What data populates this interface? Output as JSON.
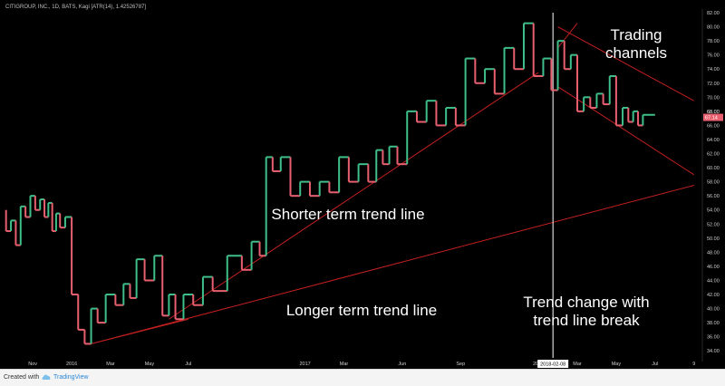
{
  "header": {
    "title": "CITIGROUP, INC., 1D, BATS, Kagi [ATR(14), 1.42526787]"
  },
  "footer": {
    "created_with": "Created with",
    "brand": "TradingView",
    "logo_icon": "cloud-icon"
  },
  "colors": {
    "up": "#3fbf8a",
    "down": "#e8606f",
    "trend_line": "#c42020",
    "background": "#000000",
    "cursor": "#ffffff"
  },
  "chart_data": {
    "type": "line",
    "subtype": "kagi",
    "ylim": [
      33,
      82
    ],
    "yticks": [
      34,
      36,
      38,
      40,
      42,
      44,
      46,
      48,
      50,
      52,
      54,
      56,
      58,
      60,
      62,
      64,
      66,
      68,
      70,
      72,
      74,
      76,
      78,
      80,
      82
    ],
    "price_tag": "67.14",
    "last_price_label": "68.00",
    "x_labels": [
      "Nov",
      "2016",
      "Mar",
      "May",
      "Jul",
      "2017",
      "Mar",
      "Jun",
      "Sep",
      "2018",
      "Mar",
      "May",
      "Jul",
      "9"
    ],
    "cursor_date": "2018-02-08",
    "kagi_lines": [
      {
        "date": "Oct 2015",
        "value": 54
      },
      {
        "date": "Oct 2015",
        "value": 51
      },
      {
        "date": "Oct 2015",
        "value": 52.5
      },
      {
        "date": "Oct 2015",
        "value": 49
      },
      {
        "date": "Nov 2015",
        "value": 54.5
      },
      {
        "date": "Nov 2015",
        "value": 53
      },
      {
        "date": "Nov 2015",
        "value": 56
      },
      {
        "date": "Nov 2015",
        "value": 54
      },
      {
        "date": "Dec 2015",
        "value": 55.5
      },
      {
        "date": "Dec 2015",
        "value": 53
      },
      {
        "date": "Dec 2015",
        "value": 55
      },
      {
        "date": "Dec 2015",
        "value": 51
      },
      {
        "date": "Dec 2015",
        "value": 53.5
      },
      {
        "date": "Jan 2016",
        "value": 51.5
      },
      {
        "date": "Jan 2016",
        "value": 53
      },
      {
        "date": "Jan 2016",
        "value": 42
      },
      {
        "date": "Feb 2016",
        "value": 37
      },
      {
        "date": "Feb 2016",
        "value": 35
      },
      {
        "date": "Feb 2016",
        "value": 40
      },
      {
        "date": "Mar 2016",
        "value": 38
      },
      {
        "date": "Mar 2016",
        "value": 42
      },
      {
        "date": "Apr 2016",
        "value": 40.5
      },
      {
        "date": "Apr 2016",
        "value": 43.5
      },
      {
        "date": "Apr 2016",
        "value": 41.5
      },
      {
        "date": "May 2016",
        "value": 47
      },
      {
        "date": "May 2016",
        "value": 44
      },
      {
        "date": "Jun 2016",
        "value": 47.5
      },
      {
        "date": "Jun 2016",
        "value": 39
      },
      {
        "date": "Jun 2016",
        "value": 42
      },
      {
        "date": "Jul 2016",
        "value": 38.5
      },
      {
        "date": "Jul 2016",
        "value": 42
      },
      {
        "date": "Aug 2016",
        "value": 40.5
      },
      {
        "date": "Aug 2016",
        "value": 44.5
      },
      {
        "date": "Sep 2016",
        "value": 42.5
      },
      {
        "date": "Oct 2016",
        "value": 47.5
      },
      {
        "date": "Oct 2016",
        "value": 45.5
      },
      {
        "date": "Nov 2016",
        "value": 49.5
      },
      {
        "date": "Nov 2016",
        "value": 47.5
      },
      {
        "date": "Nov 2016",
        "value": 61.5
      },
      {
        "date": "Dec 2016",
        "value": 59.5
      },
      {
        "date": "Dec 2016",
        "value": 61.5
      },
      {
        "date": "Jan 2017",
        "value": 56
      },
      {
        "date": "Jan 2017",
        "value": 58
      },
      {
        "date": "Feb 2017",
        "value": 56
      },
      {
        "date": "Feb 2017",
        "value": 58
      },
      {
        "date": "Mar 2017",
        "value": 56.5
      },
      {
        "date": "Mar 2017",
        "value": 61.5
      },
      {
        "date": "Apr 2017",
        "value": 58
      },
      {
        "date": "Apr 2017",
        "value": 60.5
      },
      {
        "date": "May 2017",
        "value": 58
      },
      {
        "date": "May 2017",
        "value": 62.5
      },
      {
        "date": "May 2017",
        "value": 60.5
      },
      {
        "date": "Jun 2017",
        "value": 63
      },
      {
        "date": "Jun 2017",
        "value": 60.5
      },
      {
        "date": "Jul 2017",
        "value": 68
      },
      {
        "date": "Jul 2017",
        "value": 66.5
      },
      {
        "date": "Aug 2017",
        "value": 69.5
      },
      {
        "date": "Aug 2017",
        "value": 66
      },
      {
        "date": "Sep 2017",
        "value": 68.5
      },
      {
        "date": "Sep 2017",
        "value": 66
      },
      {
        "date": "Oct 2017",
        "value": 75.5
      },
      {
        "date": "Oct 2017",
        "value": 72
      },
      {
        "date": "Nov 2017",
        "value": 74
      },
      {
        "date": "Nov 2017",
        "value": 70.5
      },
      {
        "date": "Dec 2017",
        "value": 77
      },
      {
        "date": "Dec 2017",
        "value": 74
      },
      {
        "date": "Jan 2018",
        "value": 80.5
      },
      {
        "date": "Jan 2018",
        "value": 73
      },
      {
        "date": "Feb 2018",
        "value": 75.5
      },
      {
        "date": "Feb 2018",
        "value": 71
      },
      {
        "date": "Feb 2018",
        "value": 78
      },
      {
        "date": "Mar 2018",
        "value": 74
      },
      {
        "date": "Mar 2018",
        "value": 76
      },
      {
        "date": "Mar 2018",
        "value": 68
      },
      {
        "date": "Apr 2018",
        "value": 70
      },
      {
        "date": "Apr 2018",
        "value": 68.5
      },
      {
        "date": "Apr 2018",
        "value": 70.5
      },
      {
        "date": "May 2018",
        "value": 69
      },
      {
        "date": "May 2018",
        "value": 73
      },
      {
        "date": "May 2018",
        "value": 66
      },
      {
        "date": "Jun 2018",
        "value": 68.5
      },
      {
        "date": "Jun 2018",
        "value": 66.5
      },
      {
        "date": "Jun 2018",
        "value": 68
      },
      {
        "date": "Jun 2018",
        "value": 66
      },
      {
        "date": "Jul 2018",
        "value": 67.5
      }
    ],
    "trend_lines": [
      {
        "name": "shorter-term",
        "from": {
          "date": "Jun 2016",
          "value": 38.5
        },
        "to": {
          "date": "Jan 2018",
          "value": 73.5
        }
      },
      {
        "name": "shorter-term-lower",
        "from": {
          "date": "Feb 2016",
          "value": 35
        },
        "to": {
          "date": "Jul 2016",
          "value": 38.5
        }
      },
      {
        "name": "longer-term",
        "from": {
          "date": "Feb 2016",
          "value": 35
        },
        "to": {
          "date": "Sep 2018",
          "value": 57.5
        }
      },
      {
        "name": "channel-upper",
        "from": {
          "date": "Feb 2018",
          "value": 80
        },
        "to": {
          "date": "Sep 2018",
          "value": 69.5
        }
      },
      {
        "name": "channel-lower",
        "from": {
          "date": "Feb 2018",
          "value": 71.5
        },
        "to": {
          "date": "Sep 2018",
          "value": 59
        }
      },
      {
        "name": "break-marker",
        "from": {
          "date": "Feb 2018",
          "value": 77
        },
        "to": {
          "date": "Mar 2018",
          "value": 80.5
        }
      }
    ],
    "annotations": [
      {
        "text": "Trading",
        "anchor": "channel-top"
      },
      {
        "text": "channels",
        "anchor": "channel-bottom"
      },
      {
        "text": "Shorter term trend line",
        "anchor": "short-trend"
      },
      {
        "text": "Longer term trend line",
        "anchor": "long-trend"
      },
      {
        "text": "Trend change with",
        "anchor": "break-top"
      },
      {
        "text": "trend line break",
        "anchor": "break-bottom"
      }
    ]
  }
}
